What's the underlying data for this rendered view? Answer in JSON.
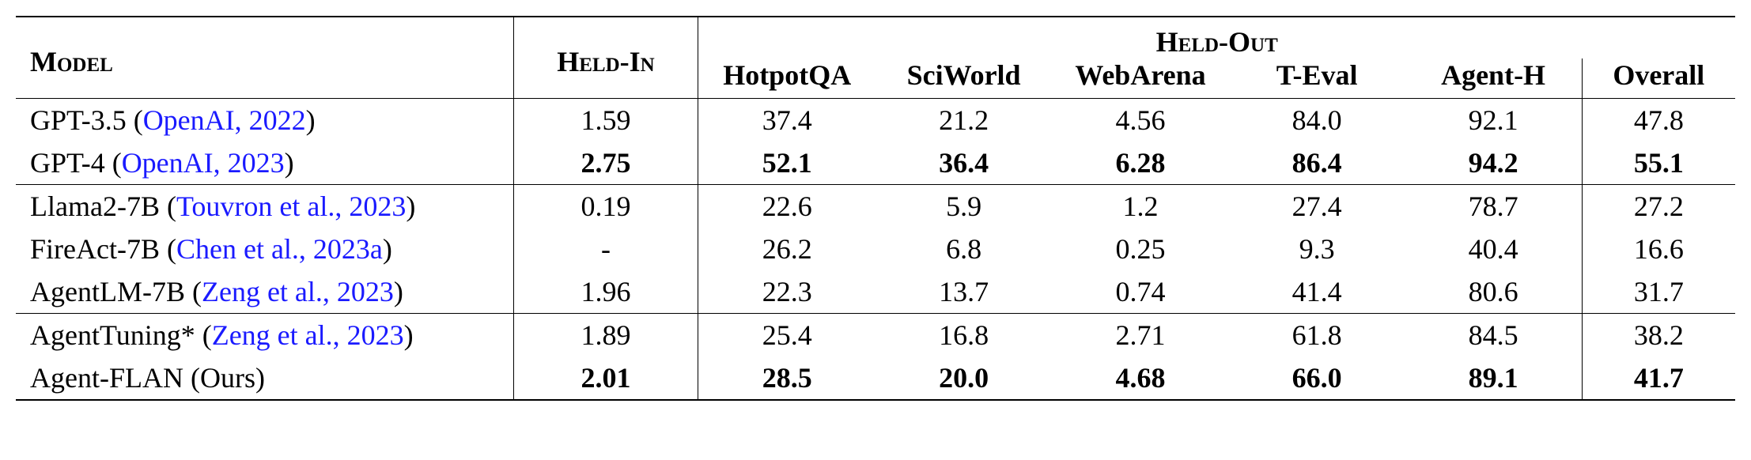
{
  "header": {
    "model": "Model",
    "heldin": "Held-In",
    "heldout": "Held-Out",
    "sub": {
      "hotpotqa": "HotpotQA",
      "sciworld": "SciWorld",
      "webarena": "WebArena",
      "teval": "T-Eval",
      "agenth": "Agent-H",
      "overall": "Overall"
    }
  },
  "rows": {
    "gpt35": {
      "model": "GPT-3.5 (",
      "cite": "OpenAI",
      "year": ", 2022",
      "close": ")",
      "heldin": "1.59",
      "hotpotqa": "37.4",
      "sciworld": "21.2",
      "webarena": "4.56",
      "teval": "84.0",
      "agenth": "92.1",
      "overall": "47.8"
    },
    "gpt4": {
      "model": "GPT-4 (",
      "cite": "OpenAI",
      "year": ", 2023",
      "close": ")",
      "heldin": "2.75",
      "hotpotqa": "52.1",
      "sciworld": "36.4",
      "webarena": "6.28",
      "teval": "86.4",
      "agenth": "94.2",
      "overall": "55.1"
    },
    "llama2": {
      "model": "Llama2-7B (",
      "cite": "Touvron et al.",
      "year": ", 2023",
      "close": ")",
      "heldin": "0.19",
      "hotpotqa": "22.6",
      "sciworld": "5.9",
      "webarena": "1.2",
      "teval": "27.4",
      "agenth": "78.7",
      "overall": "27.2"
    },
    "fireact": {
      "model": "FireAct-7B (",
      "cite": "Chen et al.",
      "year": ", 2023a",
      "close": ")",
      "heldin": "-",
      "hotpotqa": "26.2",
      "sciworld": "6.8",
      "webarena": "0.25",
      "teval": "9.3",
      "agenth": "40.4",
      "overall": "16.6"
    },
    "agentlm": {
      "model": "AgentLM-7B (",
      "cite": "Zeng et al.",
      "year": ", 2023",
      "close": ")",
      "heldin": "1.96",
      "hotpotqa": "22.3",
      "sciworld": "13.7",
      "webarena": "0.74",
      "teval": "41.4",
      "agenth": "80.6",
      "overall": "31.7"
    },
    "agenttuning": {
      "model": "AgentTuning* (",
      "cite": "Zeng et al.",
      "year": ", 2023",
      "close": ")",
      "heldin": "1.89",
      "hotpotqa": "25.4",
      "sciworld": "16.8",
      "webarena": "2.71",
      "teval": "61.8",
      "agenth": "84.5",
      "overall": "38.2"
    },
    "agentflan": {
      "model": "Agent-FLAN (Ours)",
      "cite": "",
      "year": "",
      "close": "",
      "heldin": "2.01",
      "hotpotqa": "28.5",
      "sciworld": "20.0",
      "webarena": "4.68",
      "teval": "66.0",
      "agenth": "89.1",
      "overall": "41.7"
    }
  },
  "colors": {
    "cite": "#1a1aff",
    "text": "#000000",
    "background": "#ffffff"
  }
}
